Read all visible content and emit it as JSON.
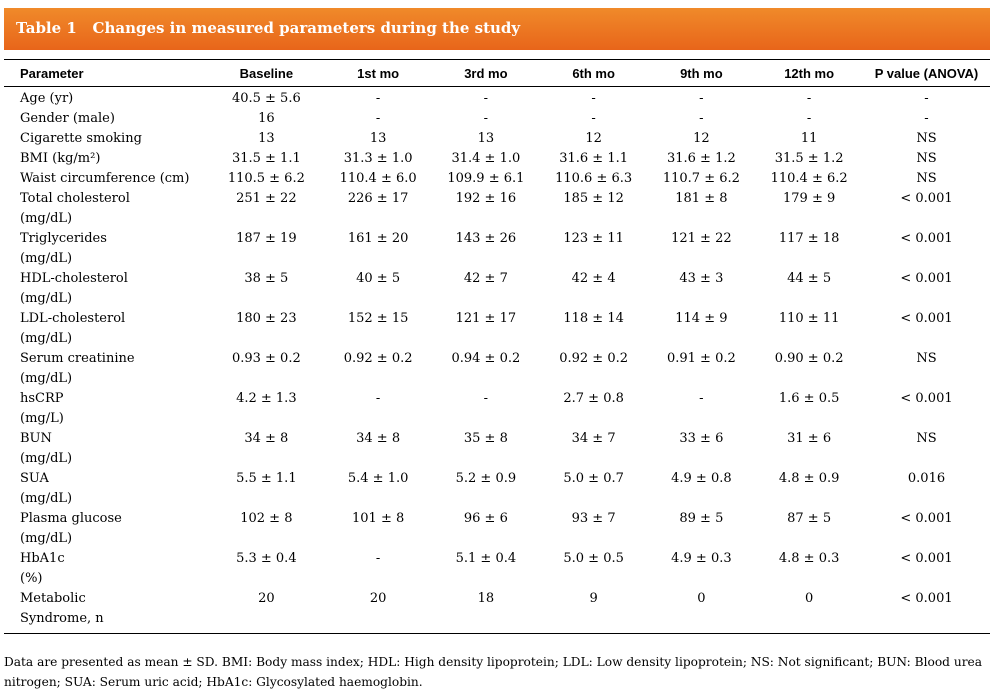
{
  "title": {
    "label": "Table 1",
    "caption": "Changes in measured parameters during the study"
  },
  "headers": [
    "Parameter",
    "Baseline",
    "1st mo",
    "3rd mo",
    "6th mo",
    "9th mo",
    "12th mo",
    "P value (ANOVA)"
  ],
  "rows": [
    {
      "param": [
        "Age (yr)"
      ],
      "values": [
        "40.5 ± 5.6",
        "-",
        "-",
        "-",
        "-",
        "-",
        "-"
      ]
    },
    {
      "param": [
        "Gender (male)"
      ],
      "values": [
        "16",
        "-",
        "-",
        "-",
        "-",
        "-",
        "-"
      ]
    },
    {
      "param": [
        "Cigarette smoking"
      ],
      "values": [
        "13",
        "13",
        "13",
        "12",
        "12",
        "11",
        "NS"
      ]
    },
    {
      "param": [
        "BMI (kg/m²)"
      ],
      "values": [
        "31.5 ± 1.1",
        "31.3 ± 1.0",
        "31.4 ± 1.0",
        "31.6 ± 1.1",
        "31.6 ± 1.2",
        "31.5 ± 1.2",
        "NS"
      ]
    },
    {
      "param": [
        "Waist circumference (cm)"
      ],
      "values": [
        "110.5 ± 6.2",
        "110.4 ± 6.0",
        "109.9 ± 6.1",
        "110.6 ± 6.3",
        "110.7 ± 6.2",
        "110.4 ± 6.2",
        "NS"
      ]
    },
    {
      "param": [
        "Total cholesterol",
        "(mg/dL)"
      ],
      "values": [
        "251 ± 22",
        "226 ± 17",
        "192 ± 16",
        "185 ± 12",
        "181 ± 8",
        "179 ± 9",
        "< 0.001"
      ]
    },
    {
      "param": [
        "Triglycerides",
        "(mg/dL)"
      ],
      "values": [
        "187 ± 19",
        "161 ± 20",
        "143 ± 26",
        "123 ± 11",
        "121 ± 22",
        "117 ± 18",
        "< 0.001"
      ]
    },
    {
      "param": [
        "HDL-cholesterol",
        "(mg/dL)"
      ],
      "values": [
        "38 ± 5",
        "40 ± 5",
        "42 ± 7",
        "42 ± 4",
        "43 ± 3",
        "44 ± 5",
        "< 0.001"
      ]
    },
    {
      "param": [
        "LDL-cholesterol",
        "(mg/dL)"
      ],
      "values": [
        "180 ± 23",
        "152 ± 15",
        "121 ± 17",
        "118 ± 14",
        "114 ± 9",
        "110 ± 11",
        "< 0.001"
      ]
    },
    {
      "param": [
        "Serum creatinine",
        "(mg/dL)"
      ],
      "values": [
        "0.93 ± 0.2",
        "0.92 ± 0.2",
        "0.94 ± 0.2",
        "0.92 ± 0.2",
        "0.91 ± 0.2",
        "0.90 ± 0.2",
        "NS"
      ]
    },
    {
      "param": [
        "hsCRP",
        "(mg/L)"
      ],
      "values": [
        "4.2 ± 1.3",
        "-",
        "-",
        "2.7 ± 0.8",
        "-",
        "1.6 ± 0.5",
        "< 0.001"
      ]
    },
    {
      "param": [
        "BUN",
        "(mg/dL)"
      ],
      "values": [
        "34 ± 8",
        "34 ± 8",
        "35 ± 8",
        "34 ± 7",
        "33 ± 6",
        "31 ± 6",
        "NS"
      ]
    },
    {
      "param": [
        "SUA",
        "(mg/dL)"
      ],
      "values": [
        "5.5 ± 1.1",
        "5.4 ± 1.0",
        "5.2 ± 0.9",
        "5.0 ± 0.7",
        "4.9 ± 0.8",
        "4.8 ± 0.9",
        "0.016"
      ]
    },
    {
      "param": [
        "Plasma glucose",
        "(mg/dL)"
      ],
      "values": [
        "102 ± 8",
        "101 ± 8",
        "96 ± 6",
        "93 ± 7",
        "89 ± 5",
        "87 ± 5",
        "< 0.001"
      ]
    },
    {
      "param": [
        "HbA1c",
        "(%)"
      ],
      "values": [
        "5.3 ± 0.4",
        "-",
        "5.1 ± 0.4",
        "5.0 ± 0.5",
        "4.9 ± 0.3",
        "4.8 ± 0.3",
        "< 0.001"
      ]
    },
    {
      "param": [
        "Metabolic",
        "Syndrome, n"
      ],
      "values": [
        "20",
        "20",
        "18",
        "9",
        "0",
        "0",
        "< 0.001"
      ]
    }
  ],
  "footnote": "Data are presented as mean ± SD. BMI: Body mass index; HDL: High density lipoprotein; LDL: Low density lipoprotein; NS: Not significant; BUN: Blood urea nitrogen; SUA: Serum uric acid; HbA1c: Glycosylated haemoglobin.",
  "colors": {
    "title_bar": "#e8651a",
    "title_text": "#ffffff"
  }
}
